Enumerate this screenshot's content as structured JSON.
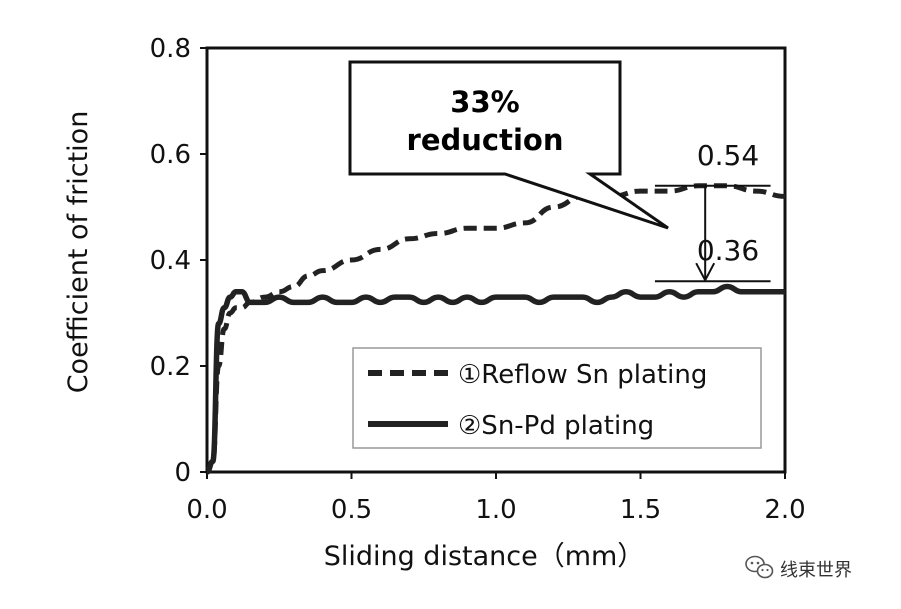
{
  "chart_data": {
    "type": "line",
    "xlabel": "Sliding distance（mm）",
    "ylabel": "Coefficient of friction",
    "xlim": [
      0,
      2.0
    ],
    "ylim": [
      0,
      0.8
    ],
    "xticks": [
      0,
      0.5,
      1.0,
      1.5,
      2.0
    ],
    "xtick_labels": [
      "0.0",
      "0.5",
      "1.0",
      "1.5",
      "2.0"
    ],
    "yticks": [
      0,
      0.2,
      0.4,
      0.6,
      0.8
    ],
    "ytick_labels": [
      "0",
      "0.2",
      "0.4",
      "0.6",
      "0.8"
    ],
    "legend_position": "bottom-right",
    "series": [
      {
        "name": "①Reflow Sn plating",
        "style": "dashed",
        "color": "#222222",
        "x": [
          0.0,
          0.02,
          0.04,
          0.06,
          0.08,
          0.1,
          0.12,
          0.15,
          0.2,
          0.25,
          0.3,
          0.35,
          0.4,
          0.5,
          0.6,
          0.7,
          0.8,
          0.9,
          1.0,
          1.1,
          1.2,
          1.3,
          1.4,
          1.5,
          1.6,
          1.7,
          1.8,
          1.9,
          2.0
        ],
        "y": [
          0.0,
          0.02,
          0.2,
          0.27,
          0.3,
          0.31,
          0.31,
          0.32,
          0.33,
          0.34,
          0.35,
          0.37,
          0.38,
          0.4,
          0.42,
          0.44,
          0.45,
          0.46,
          0.46,
          0.47,
          0.5,
          0.52,
          0.52,
          0.53,
          0.53,
          0.54,
          0.54,
          0.53,
          0.52
        ]
      },
      {
        "name": "②Sn-Pd plating",
        "style": "solid",
        "color": "#222222",
        "x": [
          0.0,
          0.02,
          0.04,
          0.06,
          0.08,
          0.1,
          0.12,
          0.15,
          0.2,
          0.25,
          0.3,
          0.35,
          0.4,
          0.45,
          0.5,
          0.55,
          0.6,
          0.65,
          0.7,
          0.75,
          0.8,
          0.85,
          0.9,
          0.95,
          1.0,
          1.05,
          1.1,
          1.15,
          1.2,
          1.25,
          1.3,
          1.35,
          1.4,
          1.45,
          1.5,
          1.55,
          1.6,
          1.65,
          1.7,
          1.75,
          1.8,
          1.85,
          1.9,
          1.95,
          2.0
        ],
        "y": [
          0.0,
          0.02,
          0.28,
          0.31,
          0.33,
          0.34,
          0.34,
          0.32,
          0.32,
          0.33,
          0.32,
          0.32,
          0.33,
          0.32,
          0.32,
          0.33,
          0.32,
          0.33,
          0.33,
          0.32,
          0.33,
          0.32,
          0.33,
          0.32,
          0.33,
          0.33,
          0.33,
          0.32,
          0.33,
          0.33,
          0.33,
          0.32,
          0.33,
          0.34,
          0.33,
          0.33,
          0.34,
          0.33,
          0.34,
          0.34,
          0.35,
          0.34,
          0.34,
          0.34,
          0.34
        ]
      }
    ],
    "annotations": {
      "callout_line1": "33%",
      "callout_line2": "reduction",
      "upper_label": "0.54",
      "upper_value": 0.54,
      "lower_label": "0.36",
      "lower_value": 0.36,
      "arrow_x": 1.62,
      "bracket_x_range": [
        1.55,
        1.95
      ]
    }
  },
  "watermark": {
    "text": "线束世界",
    "icon": "wechat-icon"
  }
}
